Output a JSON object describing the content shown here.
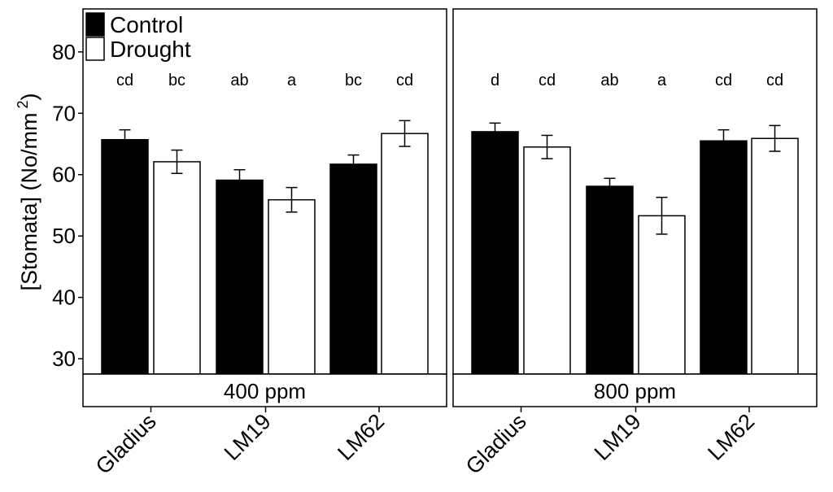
{
  "chart_data": {
    "type": "bar",
    "title": "",
    "ylabel_main": "[Stomata] (No/mm",
    "ylabel_sup": "2",
    "ylabel_close": ")",
    "xlabel": "",
    "ylim": [
      27.5,
      87
    ],
    "yticks": [
      30,
      40,
      50,
      60,
      70,
      80
    ],
    "categories": [
      "Gladius",
      "LM19",
      "LM62"
    ],
    "legend": {
      "position": "top-left",
      "entries": [
        {
          "name": "Control",
          "fill": "#000000"
        },
        {
          "name": "Drought",
          "fill": "#ffffff"
        }
      ]
    },
    "facets": [
      {
        "label": "400 ppm",
        "series": [
          {
            "name": "Control",
            "values": [
              65.7,
              59.1,
              61.7
            ],
            "errors": [
              1.6,
              1.7,
              1.5
            ],
            "letters": [
              "cd",
              "ab",
              "bc"
            ]
          },
          {
            "name": "Drought",
            "values": [
              62.1,
              55.9,
              66.7
            ],
            "errors": [
              1.9,
              2.0,
              2.1
            ],
            "letters": [
              "bc",
              "a",
              "cd"
            ]
          }
        ]
      },
      {
        "label": "800 ppm",
        "series": [
          {
            "name": "Control",
            "values": [
              67.0,
              58.1,
              65.5
            ],
            "errors": [
              1.4,
              1.3,
              1.8
            ],
            "letters": [
              "d",
              "ab",
              "cd"
            ]
          },
          {
            "name": "Drought",
            "values": [
              64.5,
              53.3,
              65.9
            ],
            "errors": [
              1.9,
              3.0,
              2.1
            ],
            "letters": [
              "cd",
              "a",
              "cd"
            ]
          }
        ]
      }
    ],
    "sig_letter_y": 75.5
  },
  "colors": {
    "control": "#000000",
    "drought": "#ffffff",
    "axis": "#000000"
  }
}
